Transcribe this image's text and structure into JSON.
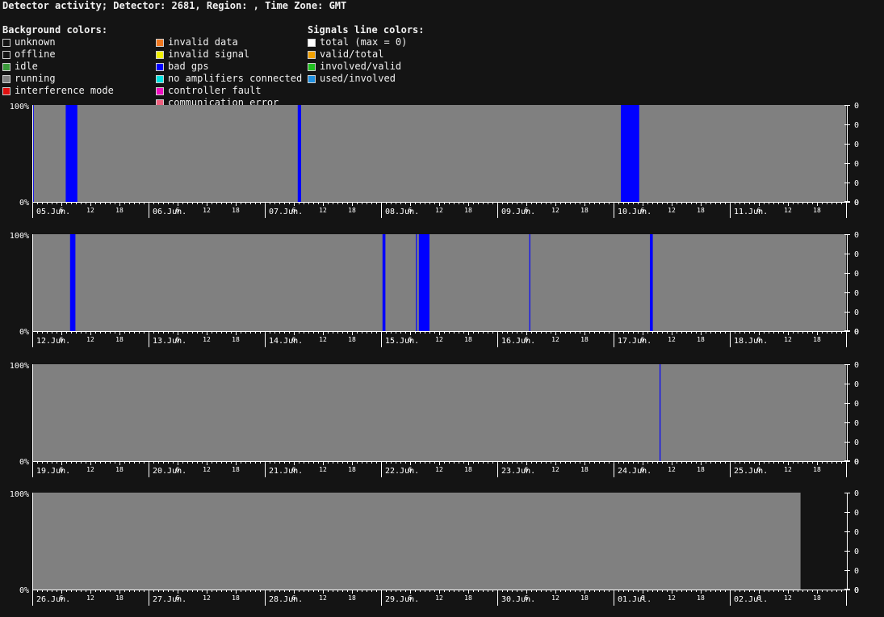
{
  "title": "Detector activity; Detector: 2681, Region: , Time Zone: GMT",
  "legend": {
    "background_heading": "Background colors:",
    "signals_heading": "Signals line colors:",
    "col1": [
      {
        "label": "unknown",
        "color": "#141414"
      },
      {
        "label": "offline",
        "color": "#141414"
      },
      {
        "label": "idle",
        "color": "#3a9a3a"
      },
      {
        "label": "running",
        "color": "#808080"
      },
      {
        "label": "interference mode",
        "color": "#e01010"
      }
    ],
    "col2": [
      {
        "label": "invalid data",
        "color": "#f07820"
      },
      {
        "label": "invalid signal",
        "color": "#f0f000"
      },
      {
        "label": "bad gps",
        "color": "#0000ff"
      },
      {
        "label": "no amplifiers connected",
        "color": "#00e0e0"
      },
      {
        "label": "controller fault",
        "color": "#f010c0"
      },
      {
        "label": "communication error",
        "color": "#f06080"
      }
    ],
    "signals": [
      {
        "label": "total (max = 0)",
        "color": "#ffffff"
      },
      {
        "label": "valid/total",
        "color": "#f0a000"
      },
      {
        "label": "involved/valid",
        "color": "#20c020"
      },
      {
        "label": "used/involved",
        "color": "#2090e0"
      }
    ]
  },
  "chart_data": [
    {
      "type": "area",
      "days": [
        "05.Jun.",
        "06.Jun.",
        "07.Jun.",
        "08.Jun.",
        "09.Jun.",
        "10.Jun.",
        "11.Jun."
      ],
      "hour_ticks": [
        "6",
        "12",
        "18"
      ],
      "y_left_labels": [
        "100%",
        "0%"
      ],
      "y_right_labels": [
        "0",
        "0",
        "0",
        "0",
        "0",
        "0"
      ],
      "background": "running",
      "data_until_hours": 168,
      "events": [
        {
          "status": "bad gps",
          "start_h": 0.0,
          "end_h": 0.3
        },
        {
          "status": "bad gps",
          "start_h": 6.9,
          "end_h": 9.3
        },
        {
          "status": "bad gps",
          "start_h": 54.8,
          "end_h": 55.5
        },
        {
          "status": "bad gps",
          "start_h": 121.5,
          "end_h": 125.3
        }
      ]
    },
    {
      "type": "area",
      "days": [
        "12.Jun.",
        "13.Jun.",
        "14.Jun.",
        "15.Jun.",
        "16.Jun.",
        "17.Jun.",
        "18.Jun."
      ],
      "hour_ticks": [
        "6",
        "12",
        "18"
      ],
      "y_left_labels": [
        "100%",
        "0%"
      ],
      "y_right_labels": [
        "0",
        "0",
        "0",
        "0",
        "0",
        "0"
      ],
      "background": "running",
      "data_until_hours": 168,
      "events": [
        {
          "status": "bad gps",
          "start_h": 7.8,
          "end_h": 8.9
        },
        {
          "status": "bad gps",
          "start_h": 72.3,
          "end_h": 72.9
        },
        {
          "status": "bad gps",
          "start_h": 79.2,
          "end_h": 79.4
        },
        {
          "status": "bad gps",
          "start_h": 79.8,
          "end_h": 82.0
        },
        {
          "status": "bad gps",
          "start_h": 102.6,
          "end_h": 102.8
        },
        {
          "status": "bad gps",
          "start_h": 127.5,
          "end_h": 128.1
        }
      ]
    },
    {
      "type": "area",
      "days": [
        "19.Jun.",
        "20.Jun.",
        "21.Jun.",
        "22.Jun.",
        "23.Jun.",
        "24.Jun.",
        "25.Jun."
      ],
      "hour_ticks": [
        "6",
        "12",
        "18"
      ],
      "y_left_labels": [
        "100%",
        "0%"
      ],
      "y_right_labels": [
        "0",
        "0",
        "0",
        "0",
        "0",
        "0"
      ],
      "background": "running",
      "data_until_hours": 168,
      "events": [
        {
          "status": "bad gps",
          "start_h": 129.5,
          "end_h": 129.7
        }
      ]
    },
    {
      "type": "area",
      "days": [
        "26.Jun.",
        "27.Jun.",
        "28.Jun.",
        "29.Jun.",
        "30.Jun.",
        "01.Jul.",
        "02.Jul."
      ],
      "hour_ticks": [
        "6",
        "12",
        "18"
      ],
      "y_left_labels": [
        "100%",
        "0%"
      ],
      "y_right_labels": [
        "0",
        "0",
        "0",
        "0",
        "0",
        "0"
      ],
      "background": "running",
      "data_until_hours": 158.6,
      "events": []
    }
  ]
}
